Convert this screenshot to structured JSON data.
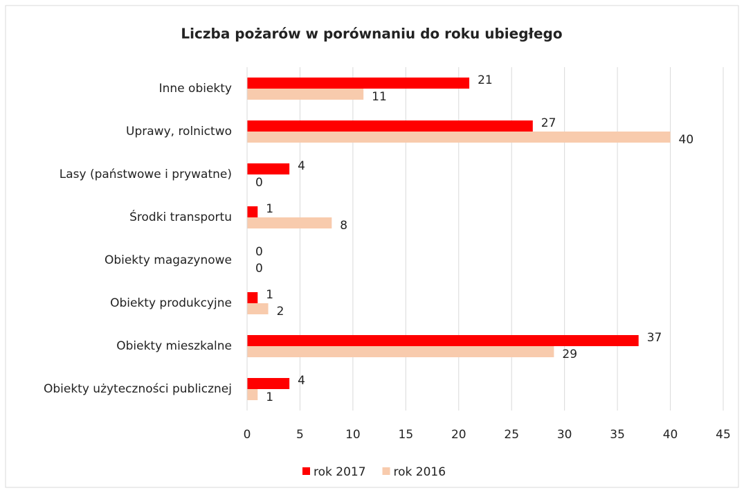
{
  "chart_data": {
    "type": "bar",
    "orientation": "horizontal",
    "title": "Liczba pożarów w porównaniu do roku ubiegłego",
    "categories": [
      "Inne obiekty",
      "Uprawy, rolnictwo",
      "Lasy (państwowe i prywatne)",
      "Środki transportu",
      "Obiekty magazynowe",
      "Obiekty produkcyjne",
      "Obiekty mieszkalne",
      "Obiekty użyteczności publicznej"
    ],
    "series": [
      {
        "name": "rok 2017",
        "color": "#ff0000",
        "values": [
          21,
          27,
          4,
          1,
          0,
          1,
          37,
          4
        ]
      },
      {
        "name": "rok 2016",
        "color": "#f8cbad",
        "values": [
          11,
          40,
          0,
          8,
          0,
          2,
          29,
          1
        ]
      }
    ],
    "xlim": [
      0,
      45
    ],
    "xticks": [
      0,
      5,
      10,
      15,
      20,
      25,
      30,
      35,
      40,
      45
    ],
    "grid": true,
    "legend": "bottom"
  }
}
